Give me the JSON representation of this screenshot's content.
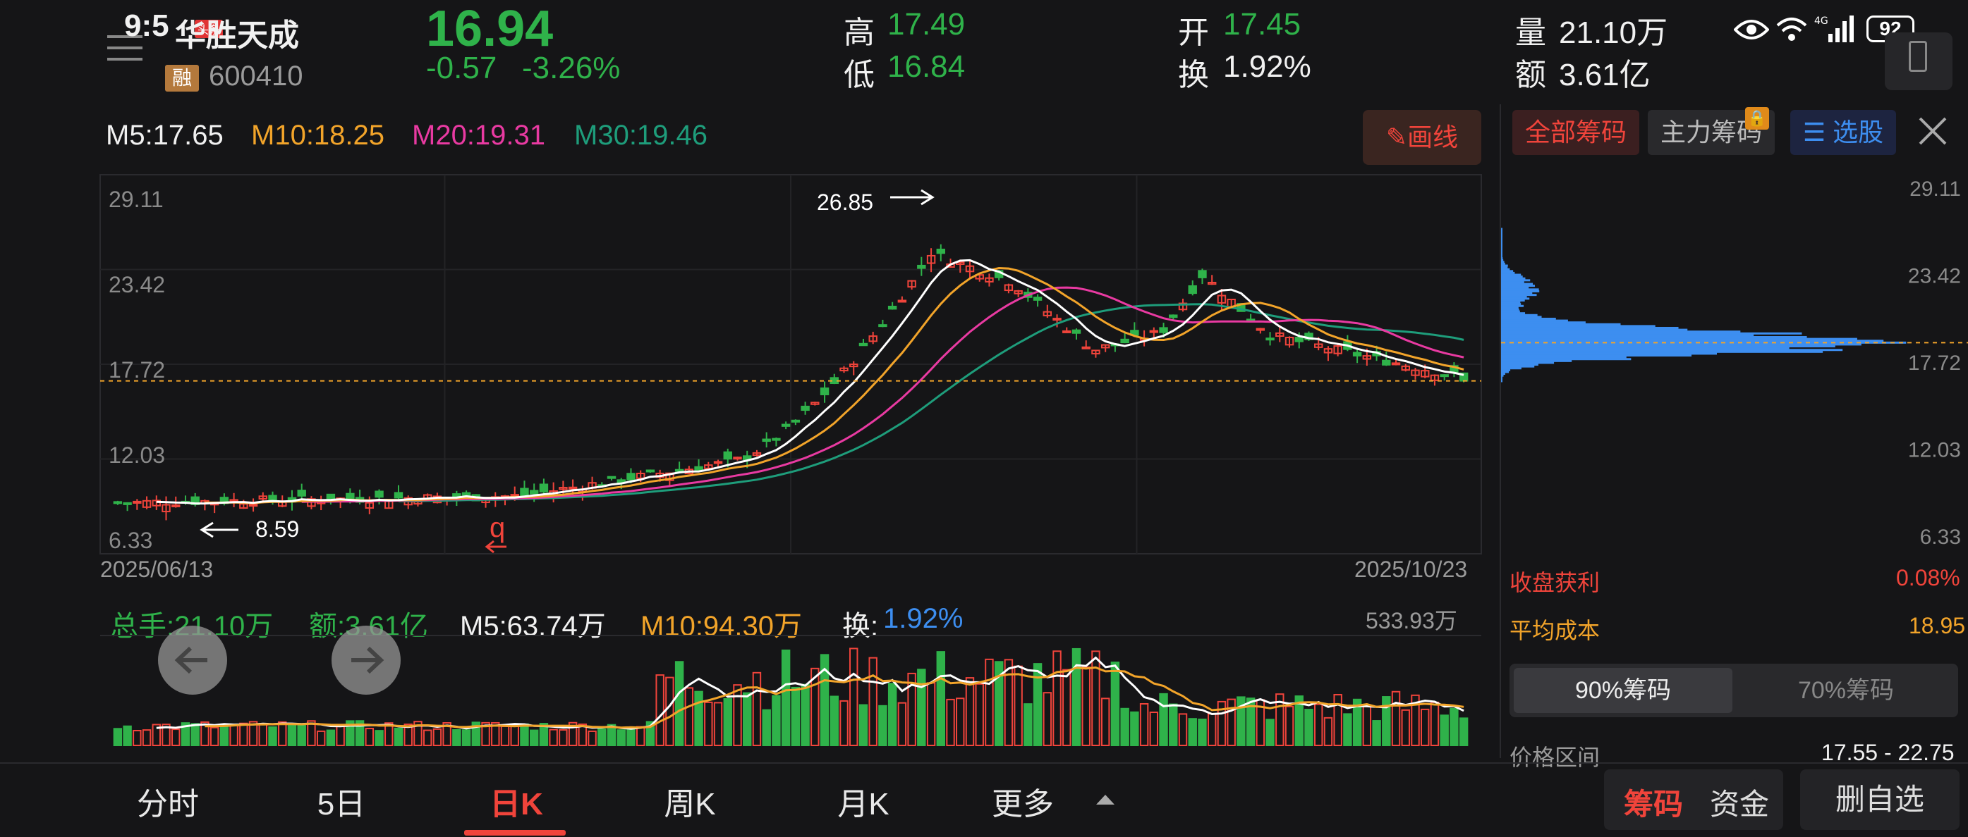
{
  "status": {
    "time": "9:5",
    "battery": "92",
    "badge": "头条"
  },
  "stock": {
    "name": "华胜天成",
    "rong": "融",
    "code": "600410",
    "price": "16.94",
    "change": "-0.57",
    "change_pct": "-3.26%"
  },
  "quote": {
    "high_label": "高",
    "high": "17.49",
    "low_label": "低",
    "low": "16.84",
    "open_label": "开",
    "open": "17.45",
    "turnover_label": "换",
    "turnover": "1.92%",
    "volume_label": "量",
    "volume": "21.10万",
    "amount_label": "额",
    "amount": "3.61亿"
  },
  "ma": {
    "m5": "M5:17.65",
    "m10": "M10:18.25",
    "m20": "M20:19.31",
    "m30": "M30:19.46"
  },
  "draw_button": "画线",
  "chart_data": {
    "type": "candlestick",
    "y_ticks": [
      "29.11",
      "23.42",
      "17.72",
      "12.03",
      "6.33"
    ],
    "ylim": [
      6.33,
      29.11
    ],
    "x_start": "2025/06/13",
    "x_end": "2025/10/23",
    "high_annotation": "26.85",
    "low_annotation": "8.59",
    "marker": "q",
    "last_price": 16.94
  },
  "volume": {
    "total_label": "总手:21.10万",
    "amount_label": "额:3.61亿",
    "m5": "M5:63.74万",
    "m10": "M10:94.30万",
    "turn_label": "换:",
    "turn_value": "1.92%",
    "max": "533.93万"
  },
  "chips": {
    "tab_all": "全部筹码",
    "tab_main": "主力筹码",
    "tab_pick": "选股",
    "y_ticks": [
      "29.11",
      "23.42",
      "17.72",
      "12.03",
      "6.33"
    ],
    "profit_label": "收盘获利",
    "profit_value": "0.08%",
    "avg_label": "平均成本",
    "avg_value": "18.95",
    "seg90": "90%筹码",
    "seg70": "70%筹码",
    "range_label": "价格区间",
    "range_value": "17.55 - 22.75"
  },
  "tabs": [
    "分时",
    "5日",
    "日K",
    "周K",
    "月K",
    "更多"
  ],
  "bottom_actions": {
    "chips": "筹码",
    "funds": "资金",
    "remove": "删自选"
  }
}
